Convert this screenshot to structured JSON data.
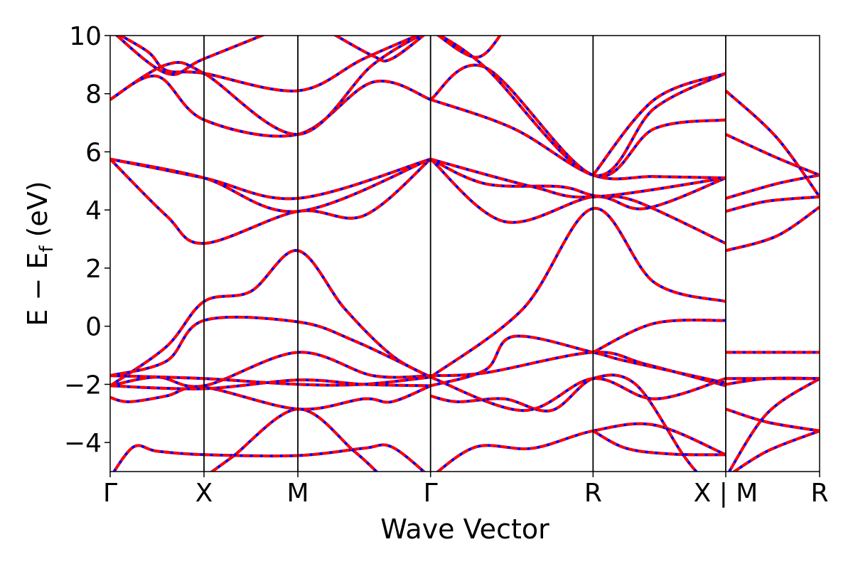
{
  "chart_data": {
    "type": "line",
    "title": "",
    "xlabel": "Wave Vector",
    "ylabel_main": "E − E",
    "ylabel_sub": "f",
    "ylabel_unit": " (eV)",
    "ylim": [
      -5,
      10
    ],
    "yticks": [
      -4,
      -2,
      0,
      2,
      4,
      6,
      8,
      10
    ],
    "ytick_labels": [
      "−4",
      "−2",
      "0",
      "2",
      "4",
      "6",
      "8",
      "10"
    ],
    "kpath": [
      {
        "label": "Γ",
        "k": 0.0
      },
      {
        "label": "X",
        "k": 1.0
      },
      {
        "label": "M",
        "k": 2.0
      },
      {
        "label": "Γ",
        "k": 3.414
      },
      {
        "label": "R",
        "k": 5.146
      },
      {
        "label": "X | M",
        "k": 6.56
      },
      {
        "label": "R",
        "k": 7.56
      }
    ],
    "line_colors": {
      "primary": "#0000ff",
      "overlay": "#ff0000"
    },
    "series": [
      {
        "segments": [
          [
            [
              0,
              -5.2
            ],
            [
              0.25,
              -4.15
            ],
            [
              0.5,
              -4.3
            ],
            [
              1,
              -4.42
            ],
            [
              2,
              -4.45
            ],
            [
              2.7,
              -4.2
            ],
            [
              3.0,
              -4.15
            ],
            [
              3.414,
              -5.2
            ]
          ],
          [
            [
              3.414,
              -5.2
            ],
            [
              3.9,
              -4.15
            ],
            [
              4.5,
              -4.2
            ],
            [
              5.146,
              -3.6
            ],
            [
              5.8,
              -3.4
            ],
            [
              6.56,
              -4.42
            ]
          ],
          [
            [
              6.56,
              -5.2
            ],
            [
              7.0,
              -4.3
            ],
            [
              7.56,
              -3.6
            ]
          ]
        ]
      },
      {
        "segments": [
          [
            [
              1,
              -5.2
            ],
            [
              1.3,
              -4.5
            ],
            [
              2,
              -2.85
            ],
            [
              2.6,
              -4.3
            ],
            [
              2.9,
              -5.2
            ]
          ],
          [
            [
              5.146,
              -3.6
            ],
            [
              5.5,
              -4.2
            ],
            [
              6.0,
              -4.4
            ],
            [
              6.56,
              -4.42
            ]
          ],
          [
            [
              6.56,
              -2.85
            ],
            [
              7.0,
              -3.3
            ],
            [
              7.56,
              -3.6
            ]
          ]
        ]
      },
      {
        "segments": [
          [
            [
              0,
              -2.45
            ],
            [
              0.2,
              -2.6
            ],
            [
              0.6,
              -2.4
            ],
            [
              1,
              -2.1
            ],
            [
              2,
              -2.85
            ],
            [
              2.7,
              -2.5
            ],
            [
              3.0,
              -2.6
            ],
            [
              3.414,
              -2.05
            ]
          ],
          [
            [
              3.414,
              -2.4
            ],
            [
              3.7,
              -2.6
            ],
            [
              4.2,
              -2.5
            ],
            [
              4.7,
              -2.9
            ],
            [
              5.146,
              -1.8
            ],
            [
              5.6,
              -2.0
            ],
            [
              6.1,
              -4.4
            ],
            [
              6.3,
              -5.2
            ]
          ],
          [
            [
              6.56,
              -5.2
            ],
            [
              7.0,
              -3.0
            ],
            [
              7.56,
              -1.8
            ]
          ]
        ]
      },
      {
        "segments": [
          [
            [
              0,
              -2.05
            ],
            [
              0.5,
              -1.75
            ],
            [
              1,
              -2.05
            ],
            [
              2,
              -0.9
            ],
            [
              2.8,
              -1.7
            ],
            [
              3.414,
              -1.7
            ]
          ],
          [
            [
              3.414,
              -1.7
            ],
            [
              4.0,
              -1.6
            ],
            [
              5.146,
              -0.9
            ],
            [
              5.7,
              -1.3
            ],
            [
              6.56,
              -2.05
            ]
          ],
          [
            [
              6.56,
              -2.0
            ],
            [
              7.0,
              -1.8
            ],
            [
              7.56,
              -1.8
            ]
          ]
        ]
      },
      {
        "segments": [
          [
            [
              0,
              -1.7
            ],
            [
              1,
              -1.8
            ],
            [
              2,
              -2.0
            ],
            [
              2.7,
              -2.0
            ],
            [
              3.414,
              -1.75
            ]
          ],
          [
            [
              3.414,
              -2.05
            ],
            [
              4.0,
              -1.5
            ],
            [
              4.3,
              -0.35
            ],
            [
              5.146,
              -0.9
            ],
            [
              5.5,
              -1.2
            ],
            [
              6.56,
              -1.95
            ]
          ],
          [
            [
              6.56,
              -0.9
            ],
            [
              7.56,
              -0.9
            ]
          ]
        ]
      },
      {
        "segments": [
          [
            [
              0,
              -2.05
            ],
            [
              1,
              -2.15
            ],
            [
              2,
              -1.85
            ],
            [
              2.7,
              -2.0
            ],
            [
              3.414,
              -2.05
            ]
          ],
          [
            [
              3.414,
              -1.75
            ],
            [
              4.4,
              -2.9
            ],
            [
              5.146,
              -1.8
            ],
            [
              5.8,
              -2.5
            ],
            [
              6.56,
              -1.8
            ]
          ],
          [
            [
              6.56,
              -1.8
            ],
            [
              7.56,
              -1.8
            ]
          ]
        ]
      },
      {
        "segments": [
          [
            [
              0,
              -2.05
            ],
            [
              0.6,
              -0.7
            ],
            [
              1,
              0.85
            ],
            [
              1.5,
              1.2
            ],
            [
              2,
              2.6
            ],
            [
              2.5,
              0.6
            ],
            [
              3.0,
              -1.0
            ],
            [
              3.414,
              -1.75
            ]
          ],
          [
            [
              3.414,
              -1.75
            ],
            [
              4.4,
              0.6
            ],
            [
              5.146,
              4.05
            ],
            [
              5.8,
              1.5
            ],
            [
              6.56,
              0.85
            ]
          ]
        ]
      },
      {
        "segments": [
          [
            [
              0,
              -1.7
            ],
            [
              0.6,
              -1.2
            ],
            [
              1,
              0.2
            ],
            [
              2,
              0.15
            ],
            [
              2.6,
              -0.5
            ],
            [
              3.414,
              -1.75
            ]
          ],
          [
            [
              5.146,
              -0.9
            ],
            [
              5.8,
              0.1
            ],
            [
              6.56,
              0.2
            ]
          ]
        ]
      },
      {
        "segments": [
          [
            [
              0,
              5.75
            ],
            [
              0.6,
              3.8
            ],
            [
              1,
              2.85
            ],
            [
              2,
              3.95
            ],
            [
              2.7,
              3.8
            ],
            [
              3.414,
              5.75
            ]
          ],
          [
            [
              3.414,
              5.75
            ],
            [
              4.2,
              3.6
            ],
            [
              5.146,
              4.45
            ],
            [
              5.7,
              4.05
            ],
            [
              6.56,
              5.1
            ]
          ],
          [
            [
              6.56,
              2.6
            ],
            [
              7.1,
              3.1
            ],
            [
              7.56,
              4.1
            ]
          ]
        ]
      },
      {
        "segments": [
          [
            [
              0,
              5.75
            ],
            [
              1,
              5.1
            ],
            [
              2,
              4.4
            ],
            [
              3.414,
              5.75
            ]
          ],
          [
            [
              3.414,
              5.75
            ],
            [
              4.0,
              4.9
            ],
            [
              4.8,
              4.8
            ],
            [
              5.146,
              4.5
            ],
            [
              5.6,
              4.3
            ],
            [
              6.56,
              2.85
            ]
          ],
          [
            [
              6.56,
              3.95
            ],
            [
              7.0,
              4.3
            ],
            [
              7.56,
              4.45
            ]
          ]
        ]
      },
      {
        "segments": [
          [
            [
              0,
              5.75
            ],
            [
              1,
              5.1
            ],
            [
              2,
              3.95
            ],
            [
              3.414,
              5.75
            ]
          ],
          [
            [
              3.414,
              5.75
            ],
            [
              4.5,
              4.8
            ],
            [
              5.146,
              4.45
            ],
            [
              6.56,
              5.1
            ]
          ],
          [
            [
              6.56,
              4.4
            ],
            [
              7.1,
              4.9
            ],
            [
              7.56,
              5.2
            ]
          ]
        ]
      },
      {
        "segments": [
          [
            [
              0,
              7.8
            ],
            [
              0.5,
              8.6
            ],
            [
              1,
              7.1
            ],
            [
              2,
              6.6
            ],
            [
              2.8,
              8.4
            ],
            [
              3.414,
              7.8
            ]
          ],
          [
            [
              3.414,
              7.8
            ],
            [
              4.3,
              6.8
            ],
            [
              5.146,
              5.2
            ],
            [
              5.8,
              5.15
            ],
            [
              6.56,
              5.1
            ]
          ],
          [
            [
              6.56,
              6.6
            ],
            [
              7.1,
              5.8
            ],
            [
              7.56,
              5.2
            ]
          ]
        ]
      },
      {
        "segments": [
          [
            [
              0,
              7.8
            ],
            [
              0.6,
              9.0
            ],
            [
              1,
              8.7
            ],
            [
              2,
              6.6
            ],
            [
              2.8,
              9.0
            ],
            [
              3.414,
              10.2
            ]
          ],
          [
            [
              3.414,
              7.8
            ],
            [
              4.0,
              8.9
            ],
            [
              5.146,
              5.2
            ],
            [
              5.8,
              6.8
            ],
            [
              6.56,
              7.1
            ]
          ],
          [
            [
              6.56,
              8.1
            ],
            [
              7.1,
              6.5
            ],
            [
              7.56,
              4.45
            ]
          ]
        ]
      },
      {
        "segments": [
          [
            [
              0,
              10.2
            ],
            [
              0.4,
              9.45
            ],
            [
              0.6,
              8.8
            ],
            [
              1,
              8.7
            ],
            [
              2,
              8.1
            ],
            [
              2.7,
              9.2
            ],
            [
              3.414,
              10.2
            ]
          ],
          [
            [
              3.414,
              10.2
            ],
            [
              4.0,
              8.9
            ],
            [
              5.146,
              5.2
            ],
            [
              5.8,
              7.5
            ],
            [
              6.56,
              8.7
            ]
          ]
        ]
      },
      {
        "segments": [
          [
            [
              0,
              10.2
            ],
            [
              0.6,
              8.7
            ],
            [
              1,
              9.2
            ],
            [
              2,
              10.5
            ]
          ],
          [
            [
              2.3,
              10.2
            ],
            [
              2.8,
              9.3
            ],
            [
              3.0,
              9.2
            ],
            [
              3.414,
              10.2
            ]
          ],
          [
            [
              3.414,
              10.2
            ],
            [
              3.9,
              9.25
            ],
            [
              4.2,
              10.2
            ]
          ],
          [
            [
              5.146,
              5.2
            ],
            [
              5.8,
              7.8
            ],
            [
              6.56,
              8.7
            ]
          ]
        ]
      }
    ]
  }
}
